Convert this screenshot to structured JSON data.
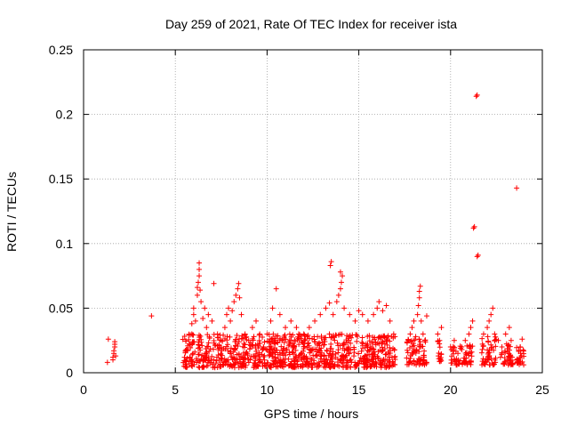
{
  "chart_data": {
    "type": "scatter",
    "title": "Day 259 of 2021, Rate Of TEC Index for receiver ista",
    "xlabel": "GPS time / hours",
    "ylabel": "ROTI / TECUs",
    "xlim": [
      0,
      25
    ],
    "ylim": [
      0,
      0.25
    ],
    "xticks": [
      0,
      5,
      10,
      15,
      20,
      25
    ],
    "xtick_labels": [
      "0",
      "5",
      "10",
      "15",
      "20",
      "25"
    ],
    "yticks": [
      0,
      0.05,
      0.1,
      0.15,
      0.2,
      0.25
    ],
    "ytick_labels": [
      "0",
      "0.05",
      "0.1",
      "0.15",
      "0.2",
      "0.25"
    ],
    "grid": true,
    "marker": "+",
    "color": "#ff0000",
    "series": [
      {
        "name": "ROTI",
        "points": [
          [
            1.3,
            0.008
          ],
          [
            1.35,
            0.026
          ],
          [
            1.6,
            0.01
          ],
          [
            1.6,
            0.012
          ],
          [
            1.65,
            0.015
          ],
          [
            1.65,
            0.017
          ],
          [
            1.7,
            0.02
          ],
          [
            1.7,
            0.022
          ],
          [
            1.7,
            0.024
          ],
          [
            1.75,
            0.013
          ],
          [
            3.7,
            0.044
          ],
          [
            5.5,
            0.012
          ],
          [
            5.6,
            0.018
          ],
          [
            5.8,
            0.022
          ],
          [
            5.9,
            0.03
          ],
          [
            5.9,
            0.038
          ],
          [
            6.0,
            0.045
          ],
          [
            6.0,
            0.05
          ],
          [
            6.1,
            0.04
          ],
          [
            6.2,
            0.06
          ],
          [
            6.2,
            0.066
          ],
          [
            6.25,
            0.07
          ],
          [
            6.3,
            0.075
          ],
          [
            6.3,
            0.08
          ],
          [
            6.3,
            0.085
          ],
          [
            6.35,
            0.064
          ],
          [
            6.4,
            0.055
          ],
          [
            6.5,
            0.042
          ],
          [
            6.6,
            0.05
          ],
          [
            6.7,
            0.035
          ],
          [
            6.8,
            0.045
          ],
          [
            7.0,
            0.04
          ],
          [
            7.1,
            0.069
          ],
          [
            7.3,
            0.03
          ],
          [
            7.5,
            0.025
          ],
          [
            7.7,
            0.035
          ],
          [
            7.8,
            0.045
          ],
          [
            7.9,
            0.05
          ],
          [
            8.0,
            0.04
          ],
          [
            8.1,
            0.048
          ],
          [
            8.2,
            0.055
          ],
          [
            8.3,
            0.06
          ],
          [
            8.4,
            0.065
          ],
          [
            8.45,
            0.069
          ],
          [
            8.5,
            0.058
          ],
          [
            8.6,
            0.045
          ],
          [
            8.8,
            0.03
          ],
          [
            9.0,
            0.025
          ],
          [
            9.2,
            0.035
          ],
          [
            9.4,
            0.04
          ],
          [
            9.6,
            0.03
          ],
          [
            9.8,
            0.02
          ],
          [
            10.0,
            0.03
          ],
          [
            10.2,
            0.04
          ],
          [
            10.3,
            0.05
          ],
          [
            10.5,
            0.065
          ],
          [
            10.7,
            0.045
          ],
          [
            11.0,
            0.035
          ],
          [
            11.3,
            0.04
          ],
          [
            11.6,
            0.035
          ],
          [
            12.0,
            0.03
          ],
          [
            12.3,
            0.035
          ],
          [
            12.6,
            0.04
          ],
          [
            12.9,
            0.045
          ],
          [
            13.2,
            0.05
          ],
          [
            13.4,
            0.054
          ],
          [
            13.45,
            0.083
          ],
          [
            13.5,
            0.086
          ],
          [
            13.6,
            0.045
          ],
          [
            13.8,
            0.055
          ],
          [
            13.9,
            0.06
          ],
          [
            14.0,
            0.065
          ],
          [
            14.05,
            0.07
          ],
          [
            14.1,
            0.075
          ],
          [
            14.0,
            0.078
          ],
          [
            14.2,
            0.05
          ],
          [
            14.5,
            0.045
          ],
          [
            14.8,
            0.04
          ],
          [
            15.0,
            0.048
          ],
          [
            15.2,
            0.045
          ],
          [
            15.5,
            0.04
          ],
          [
            15.8,
            0.045
          ],
          [
            16.0,
            0.05
          ],
          [
            16.1,
            0.055
          ],
          [
            16.3,
            0.048
          ],
          [
            16.5,
            0.052
          ],
          [
            16.7,
            0.04
          ],
          [
            16.9,
            0.03
          ],
          [
            17.7,
            0.025
          ],
          [
            17.8,
            0.03
          ],
          [
            17.9,
            0.035
          ],
          [
            18.0,
            0.04
          ],
          [
            18.1,
            0.028
          ],
          [
            18.2,
            0.045
          ],
          [
            18.25,
            0.052
          ],
          [
            18.3,
            0.058
          ],
          [
            18.3,
            0.063
          ],
          [
            18.35,
            0.067
          ],
          [
            18.4,
            0.04
          ],
          [
            18.5,
            0.03
          ],
          [
            18.6,
            0.025
          ],
          [
            18.7,
            0.044
          ],
          [
            19.3,
            0.03
          ],
          [
            19.4,
            0.025
          ],
          [
            19.5,
            0.035
          ],
          [
            20.0,
            0.02
          ],
          [
            20.2,
            0.025
          ],
          [
            20.4,
            0.015
          ],
          [
            20.6,
            0.02
          ],
          [
            20.8,
            0.025
          ],
          [
            21.0,
            0.03
          ],
          [
            21.1,
            0.035
          ],
          [
            21.2,
            0.04
          ],
          [
            21.25,
            0.112
          ],
          [
            21.3,
            0.113
          ],
          [
            21.45,
            0.09
          ],
          [
            21.5,
            0.091
          ],
          [
            21.4,
            0.214
          ],
          [
            21.45,
            0.215
          ],
          [
            21.8,
            0.03
          ],
          [
            22.0,
            0.035
          ],
          [
            22.1,
            0.04
          ],
          [
            22.2,
            0.045
          ],
          [
            22.3,
            0.05
          ],
          [
            22.4,
            0.03
          ],
          [
            22.6,
            0.025
          ],
          [
            22.8,
            0.02
          ],
          [
            23.0,
            0.03
          ],
          [
            23.2,
            0.035
          ],
          [
            23.3,
            0.025
          ],
          [
            23.6,
            0.143
          ],
          [
            23.8,
            0.02
          ],
          [
            23.9,
            0.026
          ]
        ],
        "dense_segments": [
          {
            "x_range": [
              5.4,
              17.0
            ],
            "y_range": [
              0.004,
              0.03
            ],
            "count": 900
          },
          {
            "x_range": [
              17.6,
              18.7
            ],
            "y_range": [
              0.006,
              0.026
            ],
            "count": 70
          },
          {
            "x_range": [
              19.3,
              19.5
            ],
            "y_range": [
              0.008,
              0.025
            ],
            "count": 15
          },
          {
            "x_range": [
              20.0,
              21.2
            ],
            "y_range": [
              0.006,
              0.022
            ],
            "count": 60
          },
          {
            "x_range": [
              21.7,
              22.5
            ],
            "y_range": [
              0.006,
              0.028
            ],
            "count": 50
          },
          {
            "x_range": [
              22.7,
              23.4
            ],
            "y_range": [
              0.006,
              0.024
            ],
            "count": 40
          },
          {
            "x_range": [
              23.6,
              24.0
            ],
            "y_range": [
              0.006,
              0.02
            ],
            "count": 25
          }
        ]
      }
    ]
  }
}
